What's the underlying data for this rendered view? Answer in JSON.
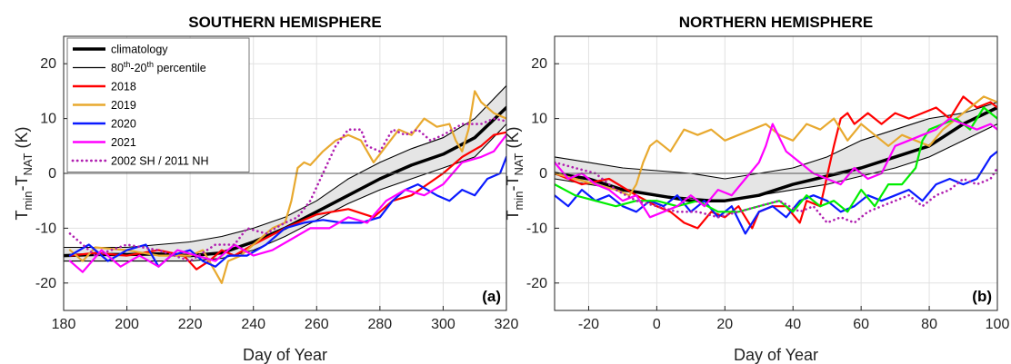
{
  "chart_data": [
    {
      "type": "line",
      "title": "SOUTHERN HEMISPHERE",
      "panel_label": "(a)",
      "xlabel": "Day of Year",
      "ylabel": {
        "main1": "T",
        "sub1": "min",
        "dash": "-T",
        "sub2": "NAT",
        "unit": " (K)"
      },
      "xlim": [
        180,
        320
      ],
      "ylim": [
        -25,
        25
      ],
      "xticks": [
        180,
        200,
        220,
        240,
        260,
        280,
        300,
        320
      ],
      "yticks": [
        -20,
        -10,
        0,
        10,
        20
      ],
      "grid": true,
      "legend": {
        "position": "top-left",
        "entries": [
          {
            "label": "climatology",
            "color": "#000000",
            "style": "thick"
          },
          {
            "label_base": "80",
            "sup1": "th",
            "label_mid": "-20",
            "sup2": "th",
            "label_end": " percentile",
            "color": "#000000",
            "style": "thin"
          },
          {
            "label": "2018",
            "color": "#ff0000",
            "style": "solid"
          },
          {
            "label": "2019",
            "color": "#e8a92f",
            "style": "solid"
          },
          {
            "label": "2020",
            "color": "#0a1aff",
            "style": "solid"
          },
          {
            "label": "2021",
            "color": "#ff00ff",
            "style": "solid"
          },
          {
            "label": "2002 SH / 2011 NH",
            "color": "#b01fb0",
            "style": "dotted"
          }
        ]
      },
      "band": {
        "x": [
          180,
          200,
          220,
          230,
          240,
          250,
          260,
          270,
          280,
          290,
          300,
          310,
          320
        ],
        "upper": [
          -13.5,
          -13.5,
          -12.5,
          -11.5,
          -10,
          -8,
          -5,
          -1,
          2,
          4.5,
          6.5,
          10,
          16
        ],
        "lower": [
          -16,
          -16,
          -16,
          -15.5,
          -14,
          -11.5,
          -8.5,
          -5.5,
          -3,
          -1,
          1,
          3,
          9
        ]
      },
      "series": [
        {
          "name": "climatology",
          "color": "#000000",
          "width": 3.5,
          "x": [
            180,
            190,
            200,
            210,
            220,
            230,
            240,
            250,
            260,
            270,
            280,
            290,
            300,
            310,
            320
          ],
          "y": [
            -15,
            -14.8,
            -14.8,
            -14.7,
            -15,
            -14.5,
            -12.5,
            -10,
            -7,
            -4,
            -1,
            1.5,
            3.5,
            6.5,
            12
          ]
        },
        {
          "name": "2018",
          "color": "#ff0000",
          "width": 2.2,
          "x": [
            182,
            190,
            200,
            210,
            218,
            222,
            226,
            230,
            234,
            240,
            250,
            260,
            270,
            278,
            284,
            290,
            295,
            300,
            306,
            312,
            316,
            320
          ],
          "y": [
            -15,
            -14.5,
            -15,
            -14,
            -15,
            -17.5,
            -16,
            -14,
            -15,
            -13,
            -10,
            -7.5,
            -6.5,
            -8,
            -5,
            -4,
            -2,
            0,
            3,
            5,
            7,
            7.5
          ]
        },
        {
          "name": "2019",
          "color": "#e8a92f",
          "width": 2.2,
          "x": [
            182,
            186,
            190,
            200,
            210,
            220,
            224,
            228,
            230,
            232,
            236,
            240,
            246,
            250,
            252,
            254,
            256,
            258,
            262,
            266,
            270,
            274,
            276,
            278,
            282,
            286,
            290,
            294,
            298,
            302,
            304,
            306,
            308,
            310,
            312,
            316,
            320
          ],
          "y": [
            -14,
            -16,
            -13.5,
            -14,
            -15,
            -15,
            -14,
            -18,
            -20,
            -16,
            -15,
            -13,
            -10,
            -9,
            -5,
            1,
            2,
            1.5,
            4,
            6,
            7,
            6,
            4,
            2,
            5,
            8,
            7,
            10,
            8.5,
            9,
            6,
            4,
            8,
            15,
            13,
            11,
            10
          ]
        },
        {
          "name": "2020",
          "color": "#0a1aff",
          "width": 2.2,
          "x": [
            182,
            188,
            194,
            200,
            206,
            210,
            214,
            220,
            224,
            228,
            232,
            238,
            244,
            250,
            256,
            262,
            268,
            274,
            280,
            284,
            288,
            292,
            298,
            302,
            306,
            310,
            314,
            318,
            320
          ],
          "y": [
            -15,
            -13,
            -16,
            -14,
            -13,
            -17,
            -15,
            -14,
            -16,
            -17,
            -15,
            -15,
            -13,
            -10,
            -9,
            -8.5,
            -9,
            -9,
            -8,
            -5,
            -3,
            -2,
            -4,
            -5,
            -3,
            -4,
            -1,
            0,
            3
          ]
        },
        {
          "name": "2021",
          "color": "#ff00ff",
          "width": 2.2,
          "x": [
            182,
            186,
            192,
            198,
            204,
            210,
            216,
            222,
            228,
            234,
            240,
            246,
            252,
            258,
            264,
            270,
            276,
            282,
            288,
            294,
            300,
            306,
            312,
            316,
            320
          ],
          "y": [
            -16,
            -18,
            -14,
            -17,
            -15,
            -17,
            -14,
            -15,
            -16,
            -13,
            -15,
            -14,
            -12,
            -10,
            -10,
            -8,
            -9,
            -5,
            -3,
            -4,
            -2,
            2,
            3,
            4,
            7
          ]
        },
        {
          "name": "2002 SH / 2011 NH",
          "color": "#b01fb0",
          "width": 2.6,
          "dotted": true,
          "x": [
            182,
            190,
            200,
            210,
            220,
            228,
            234,
            238,
            244,
            250,
            254,
            258,
            262,
            266,
            270,
            274,
            276,
            280,
            284,
            288,
            292,
            296,
            300,
            306,
            312,
            316,
            320
          ],
          "y": [
            -11,
            -15,
            -13,
            -14,
            -16,
            -13,
            -13,
            -10,
            -11,
            -9,
            -8,
            -5,
            0,
            5,
            8,
            8,
            5,
            4,
            8,
            7,
            8,
            6,
            7,
            9,
            9,
            10,
            9.5
          ]
        }
      ]
    },
    {
      "type": "line",
      "title": "NORTHERN HEMISPHERE",
      "panel_label": "(b)",
      "xlabel": "Day of Year",
      "ylabel": {
        "main1": "T",
        "sub1": "min",
        "dash": "-T",
        "sub2": "NAT",
        "unit": " (K)"
      },
      "xlim": [
        -30,
        100
      ],
      "ylim": [
        -25,
        25
      ],
      "xticks": [
        -20,
        0,
        20,
        40,
        60,
        80,
        100
      ],
      "yticks": [
        -20,
        -10,
        0,
        10,
        20
      ],
      "grid": true,
      "band": {
        "x": [
          -30,
          -20,
          -10,
          0,
          10,
          20,
          30,
          40,
          50,
          60,
          70,
          80,
          90,
          100
        ],
        "upper": [
          3,
          2,
          1,
          0.5,
          0,
          -1,
          0,
          1,
          3,
          6,
          8,
          10,
          11,
          13
        ],
        "lower": [
          -1,
          -2,
          -3,
          -4,
          -4.5,
          -5,
          -4,
          -3,
          -2,
          -0.5,
          1,
          3,
          6,
          9
        ]
      },
      "series": [
        {
          "name": "climatology",
          "color": "#000000",
          "width": 3.5,
          "x": [
            -30,
            -20,
            -10,
            0,
            10,
            20,
            30,
            40,
            50,
            60,
            70,
            80,
            90,
            100
          ],
          "y": [
            0,
            -1,
            -3,
            -4,
            -5,
            -5,
            -4,
            -2,
            -0.5,
            1,
            3,
            5,
            9,
            12
          ]
        },
        {
          "name": "2018",
          "color": "#ff0000",
          "width": 2.2,
          "x": [
            -30,
            -22,
            -14,
            -6,
            0,
            4,
            8,
            12,
            16,
            20,
            24,
            28,
            30,
            34,
            38,
            42,
            44,
            48,
            52,
            54,
            56,
            58,
            62,
            66,
            70,
            74,
            78,
            82,
            86,
            90,
            94,
            98,
            100
          ],
          "y": [
            0,
            -2,
            -1,
            -4,
            -6,
            -7,
            -9,
            -10,
            -7,
            -8,
            -6,
            -10,
            -7,
            -6,
            -6,
            -9,
            -5,
            -6,
            5,
            10,
            11,
            9,
            11,
            9,
            11,
            10,
            11,
            12,
            10,
            14,
            12,
            13,
            12
          ]
        },
        {
          "name": "2019",
          "color": "#e8a92f",
          "width": 2.2,
          "x": [
            -30,
            -24,
            -18,
            -12,
            -8,
            -6,
            -4,
            -2,
            0,
            4,
            8,
            12,
            16,
            20,
            24,
            28,
            32,
            36,
            40,
            44,
            48,
            52,
            56,
            60,
            64,
            68,
            72,
            76,
            80,
            84,
            88,
            92,
            96,
            100
          ],
          "y": [
            0,
            -1,
            -2,
            -3,
            -4,
            -2,
            2,
            5,
            6,
            4,
            8,
            7,
            8,
            6,
            7,
            8,
            9,
            7,
            6,
            9,
            8,
            10,
            6,
            9,
            7,
            5,
            7,
            6,
            5,
            8,
            10,
            12,
            14,
            13
          ]
        },
        {
          "name": "2020",
          "color": "#0a1aff",
          "width": 2.2,
          "x": [
            -30,
            -26,
            -22,
            -18,
            -14,
            -10,
            -6,
            -2,
            2,
            6,
            10,
            14,
            18,
            22,
            26,
            28,
            30,
            34,
            38,
            42,
            46,
            50,
            54,
            58,
            62,
            66,
            70,
            74,
            78,
            82,
            86,
            90,
            94,
            98,
            100
          ],
          "y": [
            -4,
            -6,
            -3,
            -5,
            -4,
            -6,
            -7,
            -5,
            -6,
            -4,
            -7,
            -5,
            -8,
            -6,
            -11,
            -9,
            -7,
            -6,
            -8,
            -5,
            -4,
            -5,
            -7,
            -6,
            -4,
            -5,
            -4,
            -3,
            -5,
            -2,
            -1,
            -2,
            -1,
            3,
            4
          ]
        },
        {
          "name": "green",
          "color": "#00ee00",
          "width": 2.2,
          "x": [
            -30,
            -24,
            -18,
            -12,
            -6,
            0,
            6,
            12,
            18,
            24,
            30,
            36,
            40,
            44,
            48,
            52,
            56,
            60,
            64,
            68,
            72,
            76,
            78,
            80,
            84,
            88,
            92,
            96,
            100
          ],
          "y": [
            -2,
            -4,
            -5,
            -6,
            -5,
            -5,
            -6,
            -5,
            -7,
            -7,
            -6,
            -5,
            -7,
            -4,
            -6,
            -5,
            -7,
            -3,
            -6,
            -2,
            -2,
            1,
            6,
            8,
            9,
            10,
            8,
            12,
            10
          ]
        },
        {
          "name": "2021",
          "color": "#ff00ff",
          "width": 2.2,
          "x": [
            -30,
            -26,
            -22,
            -18,
            -14,
            -10,
            -6,
            -2,
            2,
            6,
            10,
            14,
            18,
            22,
            26,
            30,
            32,
            34,
            38,
            42,
            46,
            50,
            54,
            58,
            62,
            66,
            70,
            74,
            78,
            82,
            86,
            90,
            94,
            98,
            100
          ],
          "y": [
            2,
            -1,
            0,
            -2,
            -3,
            -5,
            -4,
            -8,
            -7,
            -6,
            -4,
            -6,
            -3,
            -4,
            -1,
            2,
            5,
            9,
            4,
            2,
            0,
            -1,
            -2,
            1,
            -1,
            0,
            5,
            6,
            7,
            8,
            10,
            9,
            8,
            9,
            8
          ]
        },
        {
          "name": "2002 SH / 2011 NH",
          "color": "#b01fb0",
          "width": 2.6,
          "dotted": true,
          "x": [
            -30,
            -24,
            -18,
            -12,
            -6,
            0,
            6,
            12,
            18,
            24,
            30,
            36,
            42,
            46,
            50,
            54,
            58,
            62,
            66,
            70,
            74,
            78,
            82,
            86,
            90,
            94,
            98,
            100
          ],
          "y": [
            2,
            1,
            0,
            -3,
            -5,
            -6,
            -7,
            -7,
            -8,
            -7,
            -6,
            -5,
            -7,
            -6,
            -9,
            -8,
            -9,
            -7,
            -6,
            -5,
            -4,
            -6,
            -4,
            -3,
            -1,
            -2,
            -1,
            1
          ]
        }
      ]
    }
  ]
}
